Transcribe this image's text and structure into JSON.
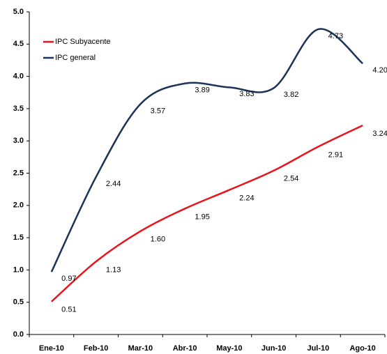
{
  "chart_data": {
    "type": "line",
    "categories": [
      "Ene-10",
      "Feb-10",
      "Mar-10",
      "Abr-10",
      "May-10",
      "Jun-10",
      "Jul-10",
      "Ago-10"
    ],
    "series": [
      {
        "name": "IPC Subyacente",
        "color": "#e8141c",
        "values": [
          0.51,
          1.13,
          1.6,
          1.95,
          2.24,
          2.54,
          2.91,
          3.24
        ],
        "value_labels": [
          "0.51",
          "1.13",
          "1.60",
          "1.95",
          "2.24",
          "2.54",
          "2.91",
          "3.24"
        ]
      },
      {
        "name": "IPC general",
        "color": "#1b3357",
        "values": [
          0.97,
          2.44,
          3.57,
          3.89,
          3.83,
          3.82,
          4.73,
          4.2
        ],
        "value_labels": [
          "0.97",
          "2.44",
          "3.57",
          "3.89",
          "3.83",
          "3.82",
          "4.73",
          "4.20"
        ]
      }
    ],
    "ylim": [
      0,
      5
    ],
    "yticks": [
      {
        "value": 0,
        "label": "0.0"
      },
      0.5,
      {
        "value": 1,
        "label": "1.0"
      },
      1.5,
      {
        "value": 2,
        "label": "2.0"
      },
      2.5,
      {
        "value": 3,
        "label": "3.0"
      },
      3.5,
      {
        "value": 4,
        "label": "4.0"
      },
      4.5,
      {
        "value": 5,
        "label": "5.0"
      }
    ],
    "grid": false,
    "legend": "upper left"
  }
}
